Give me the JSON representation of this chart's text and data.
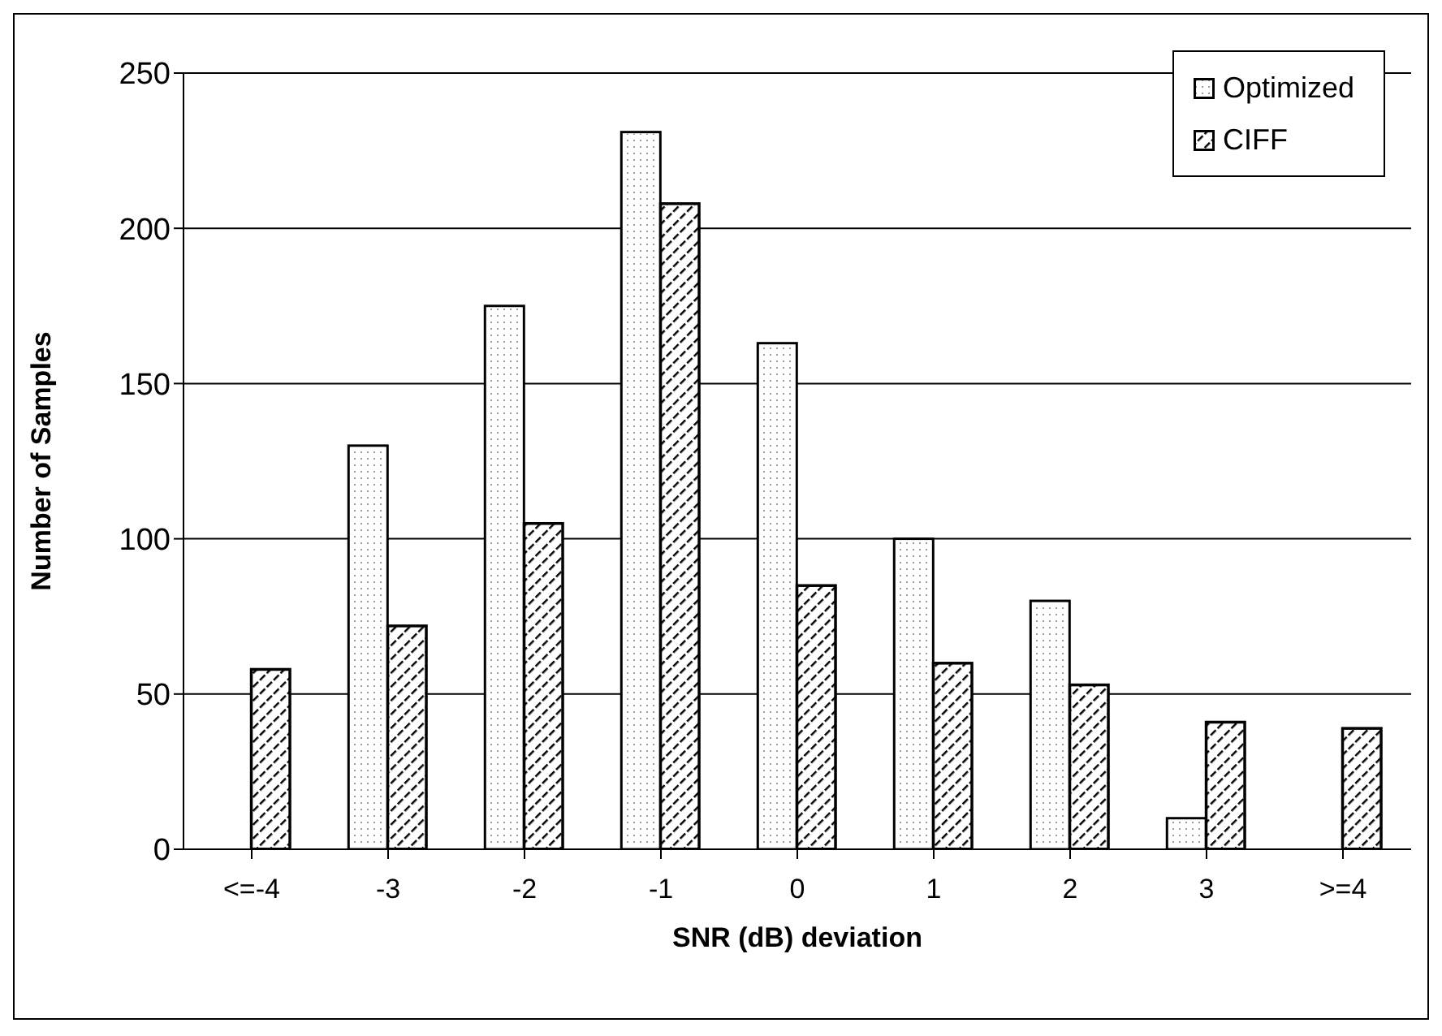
{
  "chart_data": {
    "type": "bar",
    "xlabel": "SNR (dB) deviation",
    "ylabel": "Number of Samples",
    "categories": [
      "<=-4",
      "-3",
      "-2",
      "-1",
      "0",
      "1",
      "2",
      "3",
      ">=4"
    ],
    "series": [
      {
        "name": "Optimized",
        "color": "#ffffff",
        "values": [
          0,
          130,
          175,
          231,
          163,
          100,
          80,
          10,
          0
        ]
      },
      {
        "name": "CIFF",
        "color": "#000000",
        "values": [
          58,
          72,
          105,
          208,
          85,
          60,
          53,
          41,
          39
        ]
      }
    ],
    "ylim": [
      0,
      250
    ],
    "yticks": [
      0,
      50,
      100,
      150,
      200,
      250
    ],
    "grid": "y",
    "legend": "top right"
  }
}
